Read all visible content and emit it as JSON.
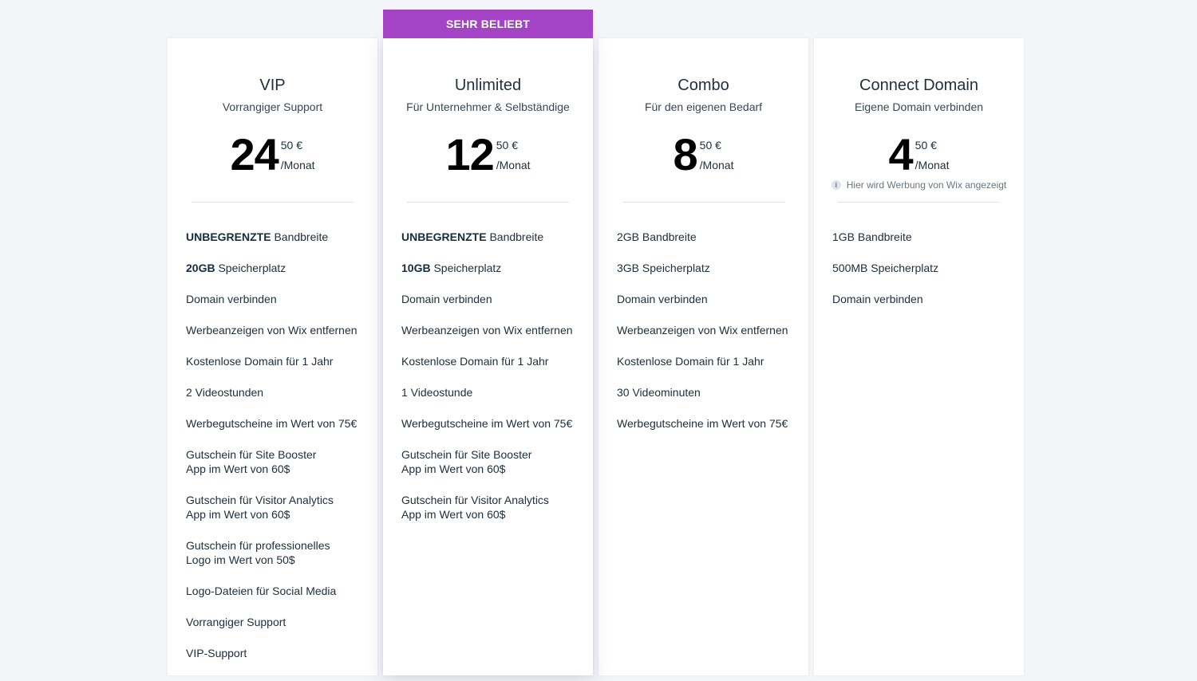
{
  "ribbon_label": "SEHR BELIEBT",
  "plans": [
    {
      "name": "VIP",
      "subtitle": "Vorrangiger Support",
      "price_main": "24",
      "price_cents": "50 €",
      "price_period": "/Monat",
      "features": [
        {
          "bold": "UNBEGRENZTE",
          "text": " Bandbreite"
        },
        {
          "bold": "20GB",
          "text": " Speicherplatz"
        },
        {
          "bold": "",
          "text": "Domain verbinden"
        },
        {
          "bold": "",
          "text": "Werbeanzeigen von Wix entfernen"
        },
        {
          "bold": "",
          "text": "Kostenlose Domain für 1 Jahr"
        },
        {
          "bold": "",
          "text": "2 Videostunden"
        },
        {
          "bold": "",
          "text": "Werbegutscheine im Wert von 75€"
        },
        {
          "bold": "",
          "text": "Gutschein für Site Booster",
          "text2": "App im Wert von 60$"
        },
        {
          "bold": "",
          "text": "Gutschein für Visitor Analytics",
          "text2": "App im Wert von 60$"
        },
        {
          "bold": "",
          "text": "Gutschein für professionelles",
          "text2": "Logo im Wert von 50$"
        },
        {
          "bold": "",
          "text": "Logo-Dateien für Social Media"
        },
        {
          "bold": "",
          "text": "Vorrangiger Support"
        },
        {
          "bold": "",
          "text": "VIP-Support"
        }
      ]
    },
    {
      "name": "Unlimited",
      "subtitle": "Für Unternehmer & Selbständige",
      "price_main": "12",
      "price_cents": "50 €",
      "price_period": "/Monat",
      "features": [
        {
          "bold": "UNBEGRENZTE",
          "text": " Bandbreite"
        },
        {
          "bold": "10GB",
          "text": " Speicherplatz"
        },
        {
          "bold": "",
          "text": "Domain verbinden"
        },
        {
          "bold": "",
          "text": "Werbeanzeigen von Wix entfernen"
        },
        {
          "bold": "",
          "text": "Kostenlose Domain für 1 Jahr"
        },
        {
          "bold": "",
          "text": "1 Videostunde"
        },
        {
          "bold": "",
          "text": "Werbegutscheine im Wert von 75€"
        },
        {
          "bold": "",
          "text": "Gutschein für Site Booster",
          "text2": "App im Wert von 60$"
        },
        {
          "bold": "",
          "text": "Gutschein für Visitor Analytics",
          "text2": "App im Wert von 60$"
        }
      ]
    },
    {
      "name": "Combo",
      "subtitle": "Für den eigenen Bedarf",
      "price_main": "8",
      "price_cents": "50 €",
      "price_period": "/Monat",
      "features": [
        {
          "bold": "",
          "text": "2GB Bandbreite"
        },
        {
          "bold": "",
          "text": "3GB Speicherplatz"
        },
        {
          "bold": "",
          "text": "Domain verbinden"
        },
        {
          "bold": "",
          "text": "Werbeanzeigen von Wix entfernen"
        },
        {
          "bold": "",
          "text": "Kostenlose Domain für 1 Jahr"
        },
        {
          "bold": "",
          "text": "30 Videominuten"
        },
        {
          "bold": "",
          "text": "Werbegutscheine im Wert von 75€"
        }
      ]
    },
    {
      "name": "Connect Domain",
      "subtitle": "Eigene Domain verbinden",
      "price_main": "4",
      "price_cents": "50 €",
      "price_period": "/Monat",
      "ad_note": "Hier wird Werbung von Wix angezeigt",
      "features": [
        {
          "bold": "",
          "text": "1GB Bandbreite"
        },
        {
          "bold": "",
          "text": "500MB Speicherplatz"
        },
        {
          "bold": "",
          "text": "Domain verbinden"
        }
      ]
    }
  ],
  "colors": {
    "ribbon": "#a543c7",
    "background": "#f3f5f9",
    "text": "#20303c"
  },
  "icons": {
    "ad_note": "info-icon"
  }
}
